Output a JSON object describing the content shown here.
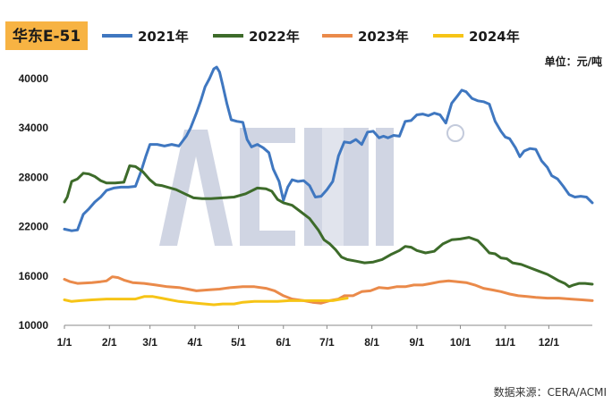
{
  "badge": "华东E-51",
  "unit": "单位：元/吨",
  "source": "数据来源：CERA/ACMI",
  "colors": {
    "badge": "#f7b343"
  },
  "chart_data": {
    "type": "line",
    "title": "华东E-51",
    "ylabel": "",
    "xlabel": "",
    "ylim": [
      10000,
      42000
    ],
    "yticks": [
      10000,
      16000,
      22000,
      28000,
      34000,
      40000
    ],
    "xticks": [
      {
        "label": "1/1",
        "day": 1
      },
      {
        "label": "2/1",
        "day": 32
      },
      {
        "label": "3/1",
        "day": 60
      },
      {
        "label": "4/1",
        "day": 91
      },
      {
        "label": "5/1",
        "day": 121
      },
      {
        "label": "6/1",
        "day": 152
      },
      {
        "label": "7/1",
        "day": 182
      },
      {
        "label": "8/1",
        "day": 213
      },
      {
        "label": "9/1",
        "day": 244
      },
      {
        "label": "10/1",
        "day": 274
      },
      {
        "label": "11/1",
        "day": 305
      },
      {
        "label": "12/1",
        "day": 335
      }
    ],
    "xlim": [
      1,
      365
    ],
    "legend_position": "top",
    "series": [
      {
        "name": "2021年",
        "color": "#3f77c0",
        "points": [
          [
            1,
            21700
          ],
          [
            6,
            21500
          ],
          [
            10,
            21600
          ],
          [
            14,
            23500
          ],
          [
            18,
            24200
          ],
          [
            22,
            25000
          ],
          [
            26,
            25600
          ],
          [
            30,
            26400
          ],
          [
            35,
            26700
          ],
          [
            40,
            26800
          ],
          [
            45,
            26800
          ],
          [
            50,
            26900
          ],
          [
            54,
            28800
          ],
          [
            57,
            30500
          ],
          [
            60,
            32000
          ],
          [
            65,
            32000
          ],
          [
            70,
            31800
          ],
          [
            75,
            32000
          ],
          [
            80,
            31800
          ],
          [
            85,
            33000
          ],
          [
            88,
            34000
          ],
          [
            92,
            35800
          ],
          [
            95,
            37300
          ],
          [
            98,
            39000
          ],
          [
            101,
            40000
          ],
          [
            104,
            41200
          ],
          [
            106,
            41400
          ],
          [
            108,
            40800
          ],
          [
            110,
            39300
          ],
          [
            113,
            37000
          ],
          [
            116,
            35000
          ],
          [
            120,
            34800
          ],
          [
            124,
            34700
          ],
          [
            127,
            32600
          ],
          [
            130,
            31700
          ],
          [
            134,
            32000
          ],
          [
            138,
            31600
          ],
          [
            142,
            31000
          ],
          [
            145,
            29000
          ],
          [
            149,
            27500
          ],
          [
            152,
            25200
          ],
          [
            155,
            26800
          ],
          [
            158,
            27700
          ],
          [
            162,
            27500
          ],
          [
            166,
            27600
          ],
          [
            170,
            27000
          ],
          [
            174,
            25600
          ],
          [
            178,
            25700
          ],
          [
            182,
            26500
          ],
          [
            186,
            27500
          ],
          [
            190,
            30600
          ],
          [
            194,
            32300
          ],
          [
            198,
            32200
          ],
          [
            202,
            32600
          ],
          [
            206,
            32000
          ],
          [
            210,
            33500
          ],
          [
            214,
            33600
          ],
          [
            218,
            32800
          ],
          [
            221,
            33000
          ],
          [
            224,
            32800
          ],
          [
            228,
            33100
          ],
          [
            232,
            33000
          ],
          [
            236,
            34800
          ],
          [
            240,
            34900
          ],
          [
            244,
            35600
          ],
          [
            248,
            35700
          ],
          [
            252,
            35500
          ],
          [
            256,
            35800
          ],
          [
            260,
            35600
          ],
          [
            264,
            34600
          ],
          [
            268,
            37000
          ],
          [
            272,
            37900
          ],
          [
            275,
            38600
          ],
          [
            278,
            38400
          ],
          [
            282,
            37600
          ],
          [
            286,
            37300
          ],
          [
            290,
            37200
          ],
          [
            294,
            36900
          ],
          [
            298,
            34800
          ],
          [
            302,
            33600
          ],
          [
            305,
            32900
          ],
          [
            308,
            32700
          ],
          [
            312,
            31600
          ],
          [
            315,
            30500
          ],
          [
            318,
            31200
          ],
          [
            322,
            31500
          ],
          [
            326,
            31400
          ],
          [
            330,
            30000
          ],
          [
            334,
            29200
          ],
          [
            337,
            28200
          ],
          [
            341,
            27800
          ],
          [
            345,
            26900
          ],
          [
            349,
            25900
          ],
          [
            353,
            25600
          ],
          [
            357,
            25700
          ],
          [
            361,
            25600
          ],
          [
            365,
            24900
          ]
        ]
      },
      {
        "name": "2022年",
        "color": "#3d6b2a",
        "points": [
          [
            1,
            25000
          ],
          [
            3,
            25600
          ],
          [
            6,
            27500
          ],
          [
            10,
            27800
          ],
          [
            14,
            28500
          ],
          [
            18,
            28400
          ],
          [
            22,
            28100
          ],
          [
            26,
            27600
          ],
          [
            30,
            27300
          ],
          [
            36,
            27300
          ],
          [
            42,
            27400
          ],
          [
            46,
            29400
          ],
          [
            50,
            29300
          ],
          [
            55,
            28700
          ],
          [
            60,
            27700
          ],
          [
            64,
            27100
          ],
          [
            68,
            27000
          ],
          [
            72,
            26800
          ],
          [
            78,
            26500
          ],
          [
            84,
            26000
          ],
          [
            90,
            25500
          ],
          [
            96,
            25400
          ],
          [
            102,
            25400
          ],
          [
            110,
            25500
          ],
          [
            118,
            25600
          ],
          [
            126,
            26000
          ],
          [
            134,
            26700
          ],
          [
            140,
            26600
          ],
          [
            144,
            26300
          ],
          [
            148,
            25300
          ],
          [
            152,
            24900
          ],
          [
            158,
            24600
          ],
          [
            164,
            23800
          ],
          [
            170,
            23000
          ],
          [
            176,
            21600
          ],
          [
            180,
            20400
          ],
          [
            184,
            19900
          ],
          [
            188,
            19200
          ],
          [
            192,
            18300
          ],
          [
            196,
            18000
          ],
          [
            202,
            17800
          ],
          [
            208,
            17600
          ],
          [
            214,
            17700
          ],
          [
            220,
            18000
          ],
          [
            226,
            18600
          ],
          [
            232,
            19100
          ],
          [
            236,
            19600
          ],
          [
            240,
            19500
          ],
          [
            244,
            19100
          ],
          [
            250,
            18800
          ],
          [
            256,
            19000
          ],
          [
            262,
            19900
          ],
          [
            268,
            20400
          ],
          [
            274,
            20500
          ],
          [
            280,
            20700
          ],
          [
            286,
            20300
          ],
          [
            290,
            19600
          ],
          [
            294,
            18800
          ],
          [
            298,
            18700
          ],
          [
            302,
            18200
          ],
          [
            306,
            18100
          ],
          [
            310,
            17600
          ],
          [
            316,
            17400
          ],
          [
            322,
            17000
          ],
          [
            328,
            16600
          ],
          [
            334,
            16200
          ],
          [
            338,
            15800
          ],
          [
            342,
            15400
          ],
          [
            346,
            15100
          ],
          [
            349,
            14700
          ],
          [
            352,
            14900
          ],
          [
            356,
            15100
          ],
          [
            360,
            15100
          ],
          [
            365,
            15000
          ]
        ]
      },
      {
        "name": "2023年",
        "color": "#ea8a4a",
        "points": [
          [
            1,
            15600
          ],
          [
            5,
            15300
          ],
          [
            10,
            15100
          ],
          [
            20,
            15200
          ],
          [
            26,
            15300
          ],
          [
            30,
            15400
          ],
          [
            34,
            15900
          ],
          [
            38,
            15800
          ],
          [
            42,
            15500
          ],
          [
            48,
            15200
          ],
          [
            56,
            15100
          ],
          [
            64,
            14900
          ],
          [
            72,
            14700
          ],
          [
            80,
            14600
          ],
          [
            86,
            14400
          ],
          [
            92,
            14200
          ],
          [
            100,
            14300
          ],
          [
            108,
            14400
          ],
          [
            116,
            14600
          ],
          [
            124,
            14700
          ],
          [
            132,
            14700
          ],
          [
            140,
            14500
          ],
          [
            146,
            14200
          ],
          [
            152,
            13600
          ],
          [
            158,
            13200
          ],
          [
            166,
            13000
          ],
          [
            172,
            12800
          ],
          [
            178,
            12700
          ],
          [
            184,
            13000
          ],
          [
            190,
            13200
          ],
          [
            194,
            13600
          ],
          [
            200,
            13600
          ],
          [
            206,
            14100
          ],
          [
            212,
            14200
          ],
          [
            218,
            14600
          ],
          [
            224,
            14500
          ],
          [
            230,
            14700
          ],
          [
            236,
            14700
          ],
          [
            242,
            14900
          ],
          [
            248,
            14900
          ],
          [
            254,
            15100
          ],
          [
            260,
            15300
          ],
          [
            266,
            15400
          ],
          [
            272,
            15300
          ],
          [
            278,
            15200
          ],
          [
            284,
            14900
          ],
          [
            290,
            14500
          ],
          [
            296,
            14300
          ],
          [
            302,
            14100
          ],
          [
            308,
            13800
          ],
          [
            314,
            13600
          ],
          [
            320,
            13500
          ],
          [
            326,
            13400
          ],
          [
            334,
            13300
          ],
          [
            342,
            13300
          ],
          [
            350,
            13200
          ],
          [
            358,
            13100
          ],
          [
            365,
            13000
          ]
        ]
      },
      {
        "name": "2024年",
        "color": "#f6c416",
        "points": [
          [
            1,
            13100
          ],
          [
            6,
            12900
          ],
          [
            12,
            13000
          ],
          [
            20,
            13100
          ],
          [
            30,
            13200
          ],
          [
            40,
            13200
          ],
          [
            50,
            13200
          ],
          [
            56,
            13500
          ],
          [
            62,
            13500
          ],
          [
            68,
            13300
          ],
          [
            74,
            13100
          ],
          [
            80,
            12900
          ],
          [
            86,
            12800
          ],
          [
            92,
            12700
          ],
          [
            98,
            12600
          ],
          [
            104,
            12500
          ],
          [
            110,
            12600
          ],
          [
            118,
            12600
          ],
          [
            124,
            12800
          ],
          [
            132,
            12900
          ],
          [
            140,
            12900
          ],
          [
            148,
            12900
          ],
          [
            156,
            13000
          ],
          [
            162,
            13000
          ],
          [
            170,
            13000
          ],
          [
            178,
            13000
          ],
          [
            186,
            13000
          ],
          [
            192,
            13200
          ],
          [
            196,
            13300
          ]
        ]
      }
    ]
  }
}
